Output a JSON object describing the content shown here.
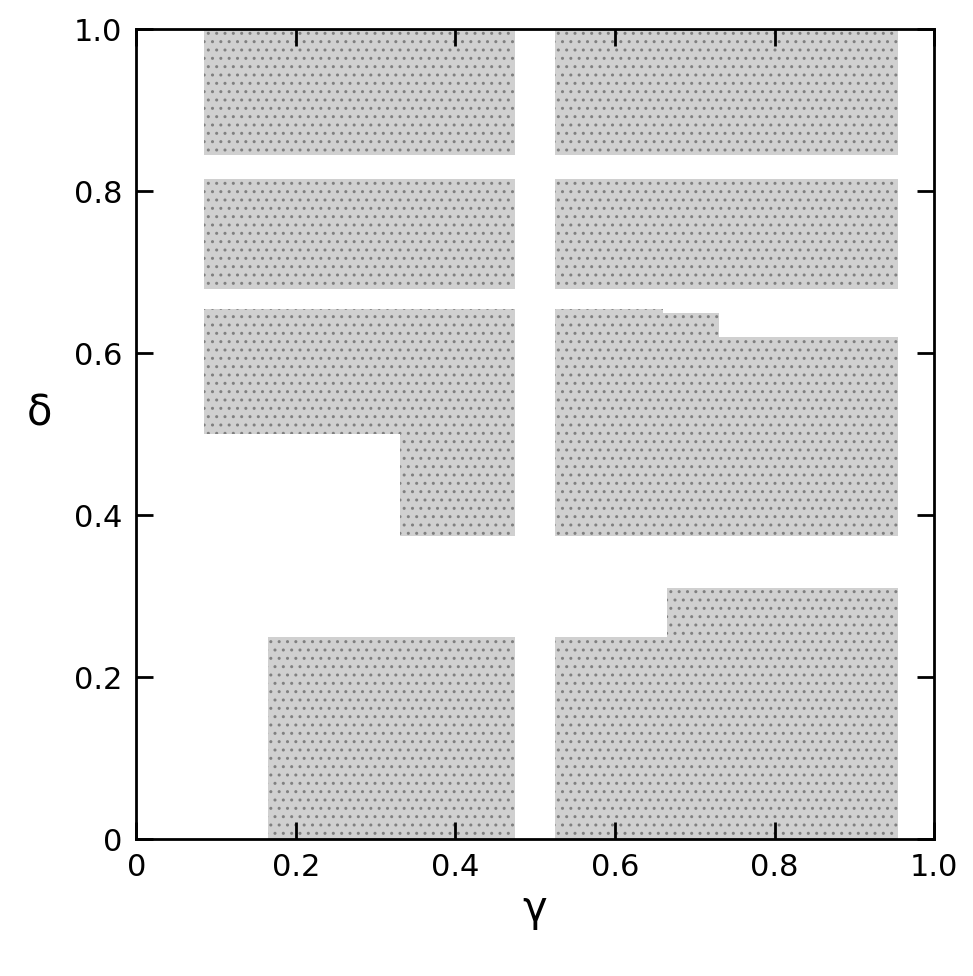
{
  "chart_data": {
    "type": "region",
    "x_label": "γ",
    "y_label": "δ",
    "regions": [
      [
        0.085,
        0.475,
        0.845,
        1.0
      ],
      [
        0.525,
        0.955,
        0.845,
        1.0
      ],
      [
        0.085,
        0.475,
        0.68,
        0.815
      ],
      [
        0.525,
        0.955,
        0.68,
        0.815
      ],
      [
        0.085,
        0.475,
        0.5,
        0.655
      ],
      [
        0.33,
        0.475,
        0.375,
        0.5
      ],
      [
        0.525,
        0.66,
        0.375,
        0.655
      ],
      [
        0.66,
        0.73,
        0.375,
        0.65
      ],
      [
        0.73,
        0.955,
        0.375,
        0.62
      ],
      [
        0.165,
        0.475,
        0.0,
        0.25
      ],
      [
        0.525,
        0.665,
        0.0,
        0.25
      ],
      [
        0.665,
        0.955,
        0.0,
        0.31
      ]
    ],
    "color": "#d0d0d0",
    "xlim": [
      0,
      1.0
    ],
    "ylim": [
      0,
      1.0
    ],
    "xticks": [
      0,
      0.2,
      0.4,
      0.6,
      0.8,
      {
        "value": 1.0,
        "label": "1.0"
      }
    ],
    "yticks": [
      0,
      0.2,
      0.4,
      0.6,
      0.8,
      {
        "value": 1.0,
        "label": "1.0"
      }
    ],
    "grid": false
  }
}
